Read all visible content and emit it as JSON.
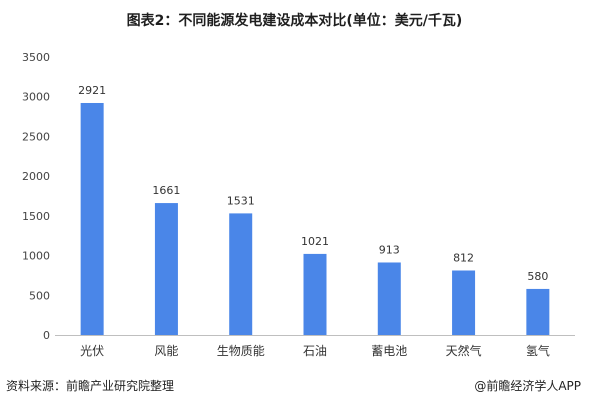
{
  "title": "图表2：不同能源发电建设成本对比(单位：美元/千瓦)",
  "source": "资料来源：前瞻产业研究院整理",
  "credit": "@前瞻经济学人APP",
  "bar_color": "#4a86e8",
  "chart_data": {
    "type": "bar",
    "categories": [
      "光伏",
      "风能",
      "生物质能",
      "石油",
      "蓄电池",
      "天然气",
      "氢气"
    ],
    "values": [
      2921,
      1661,
      1531,
      1021,
      913,
      812,
      580
    ],
    "ylim": [
      0,
      3500
    ],
    "yticks": [
      0,
      500,
      1000,
      1500,
      2000,
      2500,
      3000,
      3500
    ],
    "grid": false
  }
}
